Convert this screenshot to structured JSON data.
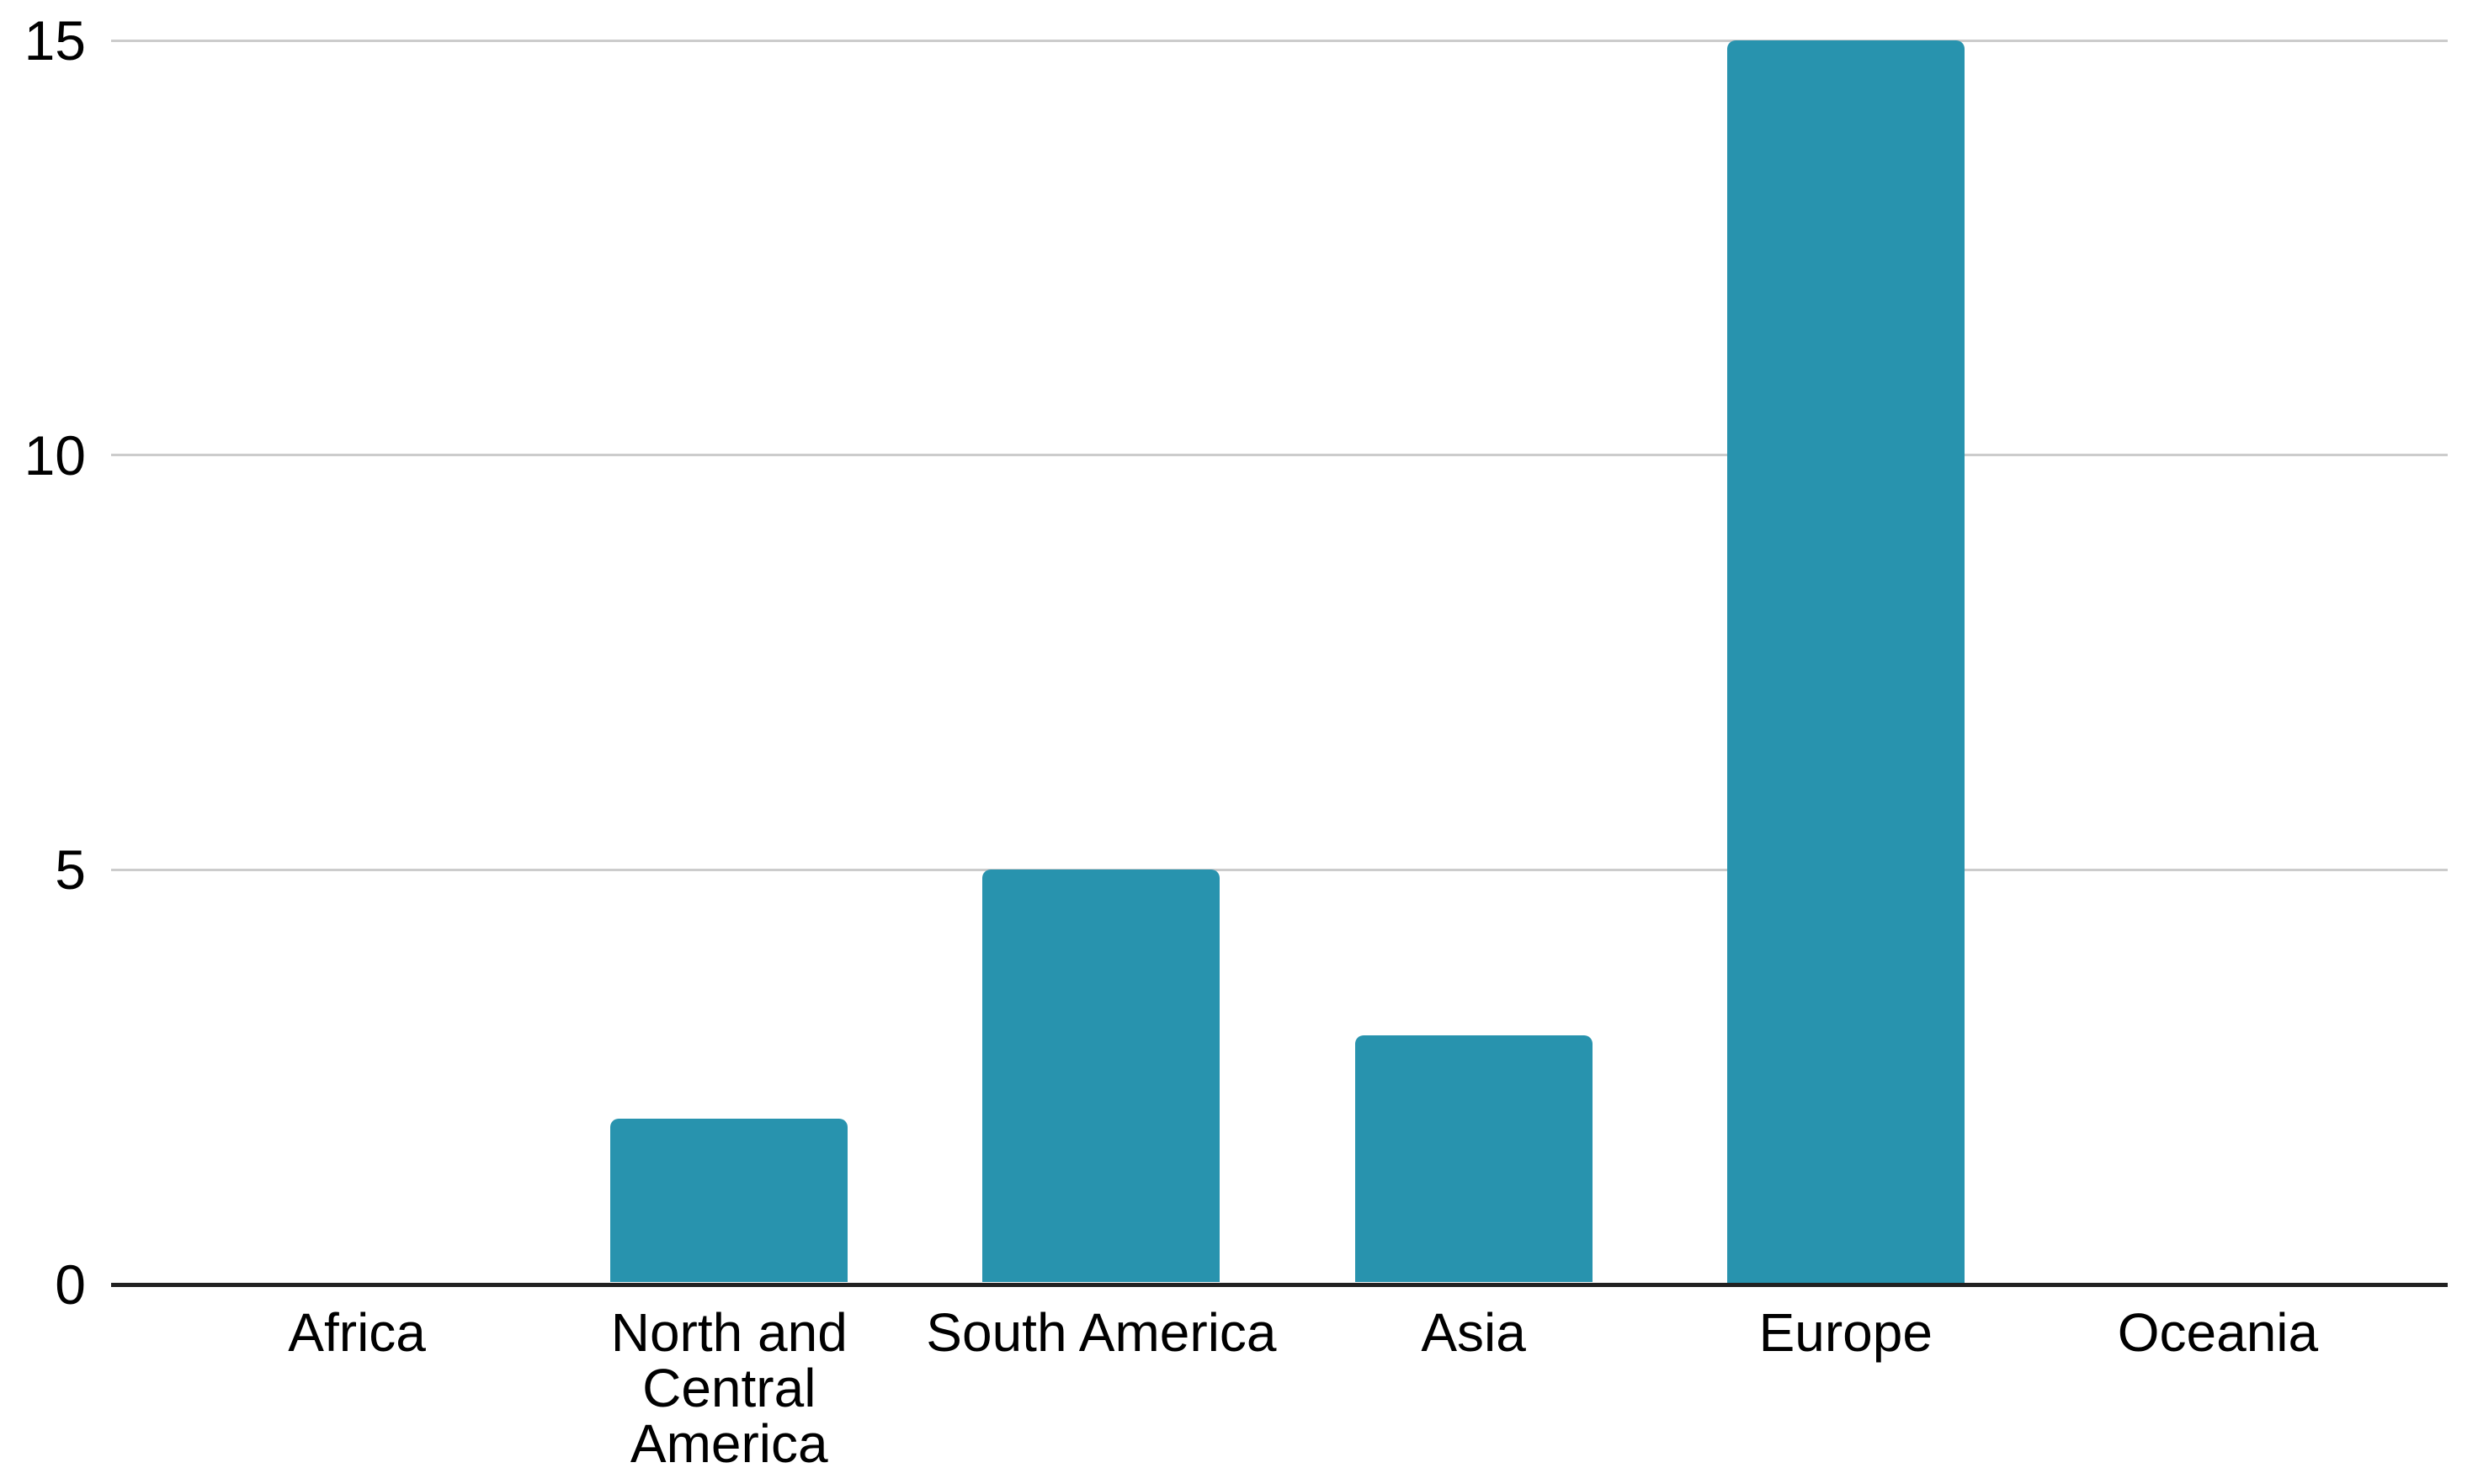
{
  "chart_data": {
    "type": "bar",
    "title": "",
    "xlabel": "",
    "ylabel": "",
    "categories": [
      "Africa",
      "North and Central America",
      "South America",
      "Asia",
      "Europe",
      "Oceania"
    ],
    "values": [
      0,
      2,
      5,
      3,
      15,
      0
    ],
    "yticks": [
      0,
      5,
      10,
      15
    ],
    "ylim": [
      0,
      15
    ],
    "grid": true,
    "legend": "none",
    "bar_color": "#2893AE",
    "gridline_color": "#CCCCCC",
    "axis_color": "#212121",
    "text_color": "#000000",
    "background_color": "#FFFFFF"
  }
}
